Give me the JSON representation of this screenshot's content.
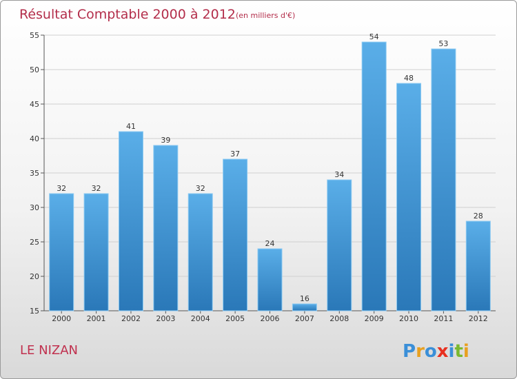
{
  "header": {
    "title": "Résultat Comptable 2000 à 2012",
    "unit_note": "(en milliers d'€)"
  },
  "footer": {
    "commune": "LE NIZAN",
    "logo_text": "Proxiti"
  },
  "colors": {
    "bar_top": "#5aaee8",
    "bar_bottom": "#2a78b8",
    "title": "#b32d4a",
    "grid": "#cfcfcf"
  },
  "chart_data": {
    "type": "bar",
    "title": "Résultat Comptable 2000 à 2012",
    "subtitle": "(en milliers d'€)",
    "categories": [
      "2000",
      "2001",
      "2002",
      "2003",
      "2004",
      "2005",
      "2006",
      "2007",
      "2008",
      "2009",
      "2010",
      "2011",
      "2012"
    ],
    "values": [
      32,
      32,
      41,
      39,
      32,
      37,
      24,
      16,
      34,
      54,
      48,
      53,
      28
    ],
    "ylim": [
      15,
      55
    ],
    "yticks": [
      15,
      20,
      25,
      30,
      35,
      40,
      45,
      50,
      55
    ],
    "grid": true,
    "legend": "none"
  }
}
